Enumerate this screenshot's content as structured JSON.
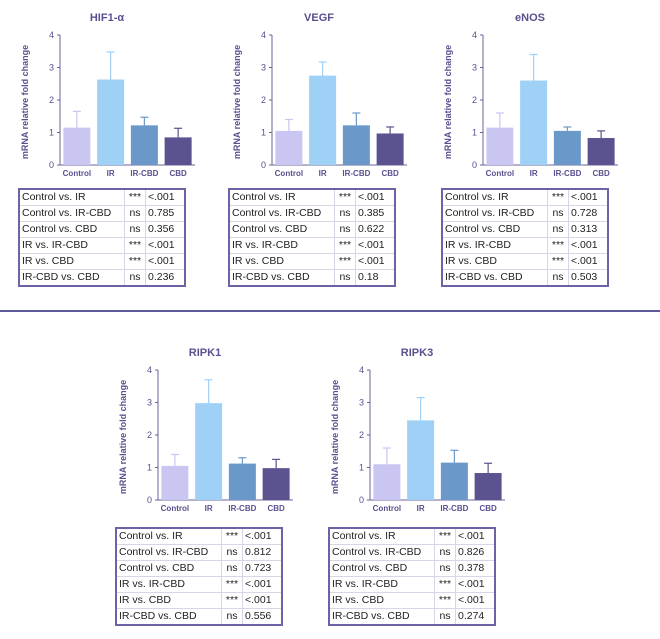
{
  "colors": {
    "Control": "#c9c6f1",
    "IR": "#9fd0f6",
    "IR-CBD": "#6a99c9",
    "CBD": "#5a5390",
    "text": "#5a4f8f"
  },
  "chart_data": [
    {
      "type": "bar",
      "title": "HIF1-α",
      "ylabel": "mRNA relative fold change",
      "categories": [
        "Control",
        "IR",
        "IR-CBD",
        "CBD"
      ],
      "values": [
        1.15,
        2.63,
        1.22,
        0.85
      ],
      "errors": [
        0.5,
        0.85,
        0.25,
        0.28
      ],
      "ylim": [
        0,
        4
      ],
      "yticks": [
        "0",
        "1",
        "2",
        "3",
        "4"
      ],
      "stats": [
        {
          "comparison": "Control vs. IR",
          "sig": "***",
          "p": "<.001"
        },
        {
          "comparison": "Control vs. IR-CBD",
          "sig": "ns",
          "p": "0.785"
        },
        {
          "comparison": "Control vs. CBD",
          "sig": "ns",
          "p": "0.356"
        },
        {
          "comparison": "IR vs. IR-CBD",
          "sig": "***",
          "p": "<.001"
        },
        {
          "comparison": "IR vs. CBD",
          "sig": "***",
          "p": "<.001"
        },
        {
          "comparison": "IR-CBD vs. CBD",
          "sig": "ns",
          "p": "0.236"
        }
      ]
    },
    {
      "type": "bar",
      "title": "VEGF",
      "ylabel": "mRNA relative fold change",
      "categories": [
        "Control",
        "IR",
        "IR-CBD",
        "CBD"
      ],
      "values": [
        1.05,
        2.75,
        1.22,
        0.97
      ],
      "errors": [
        0.35,
        0.42,
        0.38,
        0.2
      ],
      "ylim": [
        0,
        4
      ],
      "yticks": [
        "0",
        "1",
        "2",
        "3",
        "4"
      ],
      "stats": [
        {
          "comparison": "Control vs. IR",
          "sig": "***",
          "p": "<.001"
        },
        {
          "comparison": "Control vs. IR-CBD",
          "sig": "ns",
          "p": "0.385"
        },
        {
          "comparison": "Control vs. CBD",
          "sig": "ns",
          "p": "0.622"
        },
        {
          "comparison": "IR vs. IR-CBD",
          "sig": "***",
          "p": "<.001"
        },
        {
          "comparison": "IR vs. CBD",
          "sig": "***",
          "p": "<.001"
        },
        {
          "comparison": "IR-CBD vs. CBD",
          "sig": "ns",
          "p": "0.18"
        }
      ]
    },
    {
      "type": "bar",
      "title": "eNOS",
      "ylabel": "mRNA relative fold change",
      "categories": [
        "Control",
        "IR",
        "IR-CBD",
        "CBD"
      ],
      "values": [
        1.15,
        2.6,
        1.05,
        0.83
      ],
      "errors": [
        0.45,
        0.8,
        0.12,
        0.22
      ],
      "ylim": [
        0,
        4
      ],
      "yticks": [
        "0",
        "1",
        "2",
        "3",
        "4"
      ],
      "stats": [
        {
          "comparison": "Control vs. IR",
          "sig": "***",
          "p": "<.001"
        },
        {
          "comparison": "Control vs. IR-CBD",
          "sig": "ns",
          "p": "0.728"
        },
        {
          "comparison": "Control vs. CBD",
          "sig": "ns",
          "p": "0.313"
        },
        {
          "comparison": "IR vs. IR-CBD",
          "sig": "***",
          "p": "<.001"
        },
        {
          "comparison": "IR vs. CBD",
          "sig": "***",
          "p": "<.001"
        },
        {
          "comparison": "IR-CBD vs. CBD",
          "sig": "ns",
          "p": "0.503"
        }
      ]
    },
    {
      "type": "bar",
      "title": "RIPK1",
      "ylabel": "mRNA relative fold change",
      "categories": [
        "Control",
        "IR",
        "IR-CBD",
        "CBD"
      ],
      "values": [
        1.05,
        2.98,
        1.12,
        0.98
      ],
      "errors": [
        0.35,
        0.72,
        0.18,
        0.27
      ],
      "ylim": [
        0,
        4
      ],
      "yticks": [
        "0",
        "1",
        "2",
        "3",
        "4"
      ],
      "stats": [
        {
          "comparison": "Control vs. IR",
          "sig": "***",
          "p": "<.001"
        },
        {
          "comparison": "Control vs. IR-CBD",
          "sig": "ns",
          "p": "0.812"
        },
        {
          "comparison": "Control vs. CBD",
          "sig": "ns",
          "p": "0.723"
        },
        {
          "comparison": "IR vs. IR-CBD",
          "sig": "***",
          "p": "<.001"
        },
        {
          "comparison": "IR vs. CBD",
          "sig": "***",
          "p": "<.001"
        },
        {
          "comparison": "IR-CBD vs. CBD",
          "sig": "ns",
          "p": "0.556"
        }
      ]
    },
    {
      "type": "bar",
      "title": "RIPK3",
      "ylabel": "mRNA relative fold change",
      "categories": [
        "Control",
        "IR",
        "IR-CBD",
        "CBD"
      ],
      "values": [
        1.1,
        2.45,
        1.15,
        0.83
      ],
      "errors": [
        0.5,
        0.7,
        0.38,
        0.3
      ],
      "ylim": [
        0,
        4
      ],
      "yticks": [
        "0",
        "1",
        "2",
        "3",
        "4"
      ],
      "stats": [
        {
          "comparison": "Control vs. IR",
          "sig": "***",
          "p": "<.001"
        },
        {
          "comparison": "Control vs. IR-CBD",
          "sig": "ns",
          "p": "0.826"
        },
        {
          "comparison": "Control vs. CBD",
          "sig": "ns",
          "p": "0.378"
        },
        {
          "comparison": "IR vs. IR-CBD",
          "sig": "***",
          "p": "<.001"
        },
        {
          "comparison": "IR vs. CBD",
          "sig": "***",
          "p": "<.001"
        },
        {
          "comparison": "IR-CBD vs. CBD",
          "sig": "ns",
          "p": "0.274"
        }
      ]
    }
  ]
}
